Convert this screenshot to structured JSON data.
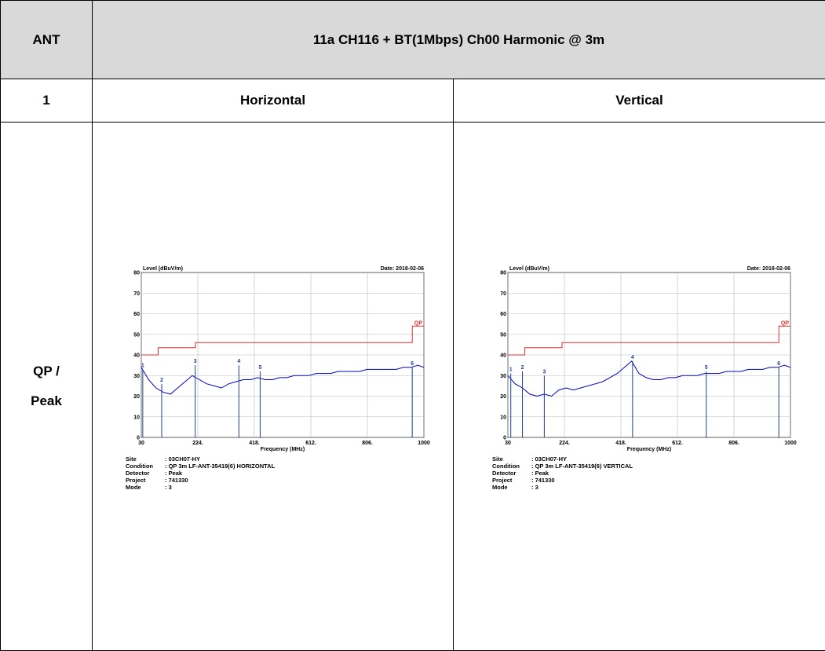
{
  "table": {
    "header": [
      "ANT",
      "11a CH116 + BT(1Mbps) Ch00 Harmonic @ 3m"
    ],
    "row1": [
      "1",
      "Horizontal",
      "Vertical"
    ],
    "row2": [
      "QP /",
      "Peak"
    ]
  },
  "chart_data": [
    {
      "type": "line",
      "ylabel": "Level (dBuV/m)",
      "date": "Date: 2018-02-06",
      "xlabel": "Frequency (MHz)",
      "xlim": [
        30,
        1000
      ],
      "xticks": [
        30,
        {
          "value": 224,
          "label": "224."
        },
        {
          "value": 418,
          "label": "418."
        },
        {
          "value": 612,
          "label": "612."
        },
        {
          "value": 806,
          "label": "806."
        },
        1000
      ],
      "ylim": [
        0,
        80
      ],
      "yticks": [
        0,
        10,
        20,
        30,
        40,
        50,
        60,
        70,
        80
      ],
      "grid": true,
      "series": [
        {
          "name": "QP",
          "color": "#e03030",
          "x": [
            30,
            88,
            88,
            216,
            216,
            960,
            960,
            1000
          ],
          "values": [
            40,
            40,
            43.5,
            43.5,
            46,
            46,
            54,
            54
          ]
        },
        {
          "color": "#0000cc",
          "x": [
            30,
            55,
            80,
            105,
            130,
            155,
            180,
            205,
            230,
            255,
            280,
            305,
            330,
            355,
            380,
            405,
            430,
            455,
            480,
            505,
            530,
            555,
            580,
            605,
            630,
            655,
            680,
            705,
            730,
            755,
            780,
            805,
            830,
            855,
            880,
            905,
            930,
            955,
            980,
            1000
          ],
          "values": [
            34,
            28,
            24,
            22,
            21,
            24,
            27,
            30,
            28,
            26,
            25,
            24,
            26,
            27,
            28,
            28,
            29,
            28,
            28,
            29,
            29,
            30,
            30,
            30,
            31,
            31,
            31,
            32,
            32,
            32,
            32,
            33,
            33,
            33,
            33,
            33,
            34,
            34,
            35,
            34
          ]
        }
      ],
      "markers": {
        "color": "#1f3f8f",
        "labels": [
          "1",
          "2",
          "3",
          "4",
          "5",
          "6"
        ],
        "x": [
          35,
          100,
          215,
          365,
          438,
          960
        ],
        "values": [
          33,
          26,
          35,
          35,
          32,
          34
        ]
      },
      "info": [
        {
          "label": "Site",
          "value": ": 03CH07-HY"
        },
        {
          "label": "Condition",
          "value": ": QP 3m LF-ANT-35419(6) HORIZONTAL"
        },
        {
          "label": "Detector",
          "value": ": Peak"
        },
        {
          "label": "Project",
          "value": ": 741330"
        },
        {
          "label": "Mode",
          "value": ": 3"
        }
      ]
    },
    {
      "type": "line",
      "ylabel": "Level (dBuV/m)",
      "date": "Date: 2018-02-06",
      "xlabel": "Frequency (MHz)",
      "xlim": [
        30,
        1000
      ],
      "xticks": [
        30,
        {
          "value": 224,
          "label": "224."
        },
        {
          "value": 418,
          "label": "418."
        },
        {
          "value": 612,
          "label": "612."
        },
        {
          "value": 806,
          "label": "806."
        },
        1000
      ],
      "ylim": [
        0,
        80
      ],
      "yticks": [
        0,
        10,
        20,
        30,
        40,
        50,
        60,
        70,
        80
      ],
      "grid": true,
      "series": [
        {
          "name": "QP",
          "color": "#e03030",
          "x": [
            30,
            88,
            88,
            216,
            216,
            960,
            960,
            1000
          ],
          "values": [
            40,
            40,
            43.5,
            43.5,
            46,
            46,
            54,
            54
          ]
        },
        {
          "color": "#0000cc",
          "x": [
            30,
            55,
            80,
            105,
            130,
            155,
            180,
            205,
            230,
            255,
            280,
            305,
            330,
            355,
            380,
            405,
            430,
            455,
            480,
            505,
            530,
            555,
            580,
            605,
            630,
            655,
            680,
            705,
            730,
            755,
            780,
            805,
            830,
            855,
            880,
            905,
            930,
            955,
            980,
            1000
          ],
          "values": [
            30,
            26,
            24,
            21,
            20,
            21,
            20,
            23,
            24,
            23,
            24,
            25,
            26,
            27,
            29,
            31,
            34,
            37,
            31,
            29,
            28,
            28,
            29,
            29,
            30,
            30,
            30,
            31,
            31,
            31,
            32,
            32,
            32,
            33,
            33,
            33,
            34,
            34,
            35,
            34
          ]
        }
      ],
      "markers": {
        "color": "#1f3f8f",
        "labels": [
          "1",
          "2",
          "3",
          "4",
          "5",
          "6"
        ],
        "x": [
          40,
          80,
          155,
          458,
          711,
          960
        ],
        "values": [
          31,
          32,
          30,
          37,
          32,
          34
        ]
      },
      "info": [
        {
          "label": "Site",
          "value": ": 03CH07-HY"
        },
        {
          "label": "Condition",
          "value": ": QP 3m LF-ANT-35419(6) VERTICAL"
        },
        {
          "label": "Detector",
          "value": ": Peak"
        },
        {
          "label": "Project",
          "value": ": 741330"
        },
        {
          "label": "Mode",
          "value": ": 3"
        }
      ]
    }
  ]
}
